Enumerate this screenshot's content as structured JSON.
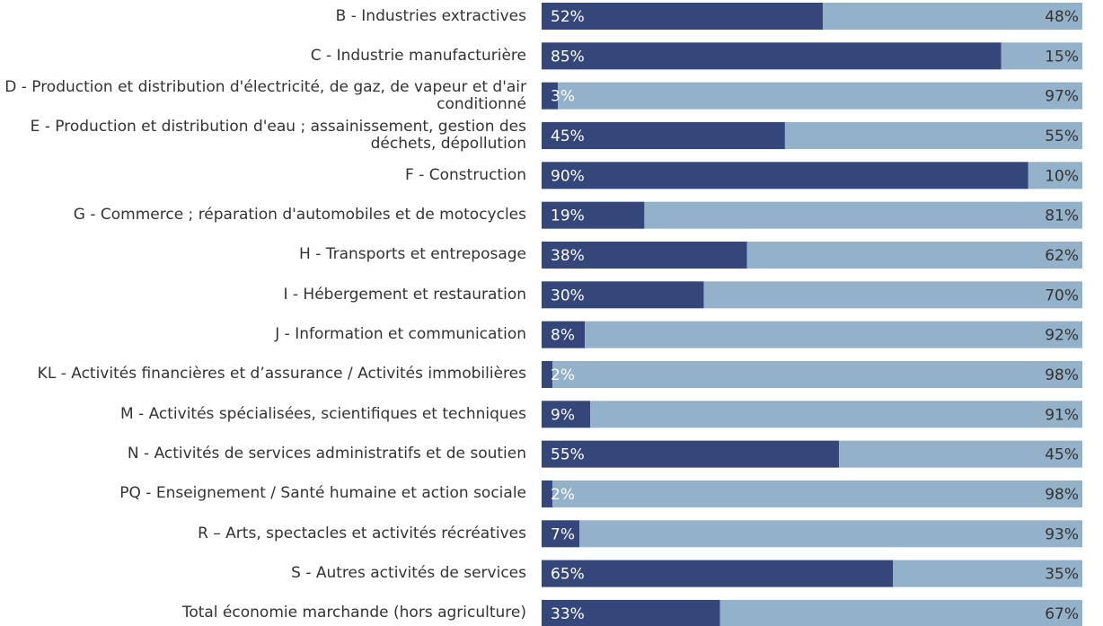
{
  "chart_data": {
    "type": "stacked-bar-horizontal",
    "categories": [
      "B - Industries extractives",
      "C - Industrie manufacturière",
      "D - Production et distribution d'électricité, de gaz, de vapeur et d'air conditionné",
      "E - Production et distribution d'eau ; assainissement, gestion des déchets, dépollution",
      "F - Construction",
      "G - Commerce ; réparation d'automobiles et de motocycles",
      "H - Transports et entreposage",
      "I - Hébergement et restauration",
      "J - Information et communication",
      "KL - Activités financières et d’assurance / Activités immobilières",
      "M - Activités spécialisées, scientifiques et techniques",
      "N - Activités de services administratifs et de soutien",
      "PQ - Enseignement / Santé humaine et action sociale",
      "R – Arts, spectacles et activités récréatives",
      "S - Autres activités de services",
      "Total économie marchande (hors agriculture)"
    ],
    "series": [
      {
        "color": "#34467a",
        "values": [
          52,
          85,
          3,
          45,
          90,
          19,
          38,
          30,
          8,
          2,
          9,
          55,
          2,
          7,
          65,
          33
        ],
        "value_labels": [
          "52%",
          "85%",
          "3%",
          "45%",
          "90%",
          "19%",
          "38%",
          "30%",
          "8%",
          "2%",
          "9%",
          "55%",
          "2%",
          "7%",
          "65%",
          "33%"
        ]
      },
      {
        "color": "#93b1c8",
        "values": [
          48,
          15,
          97,
          55,
          10,
          81,
          62,
          70,
          92,
          98,
          91,
          45,
          98,
          93,
          35,
          67
        ],
        "value_labels": [
          "48%",
          "15%",
          "97%",
          "55%",
          "10%",
          "81%",
          "62%",
          "70%",
          "92%",
          "98%",
          "91%",
          "45%",
          "98%",
          "93%",
          "35%",
          "67%"
        ]
      }
    ],
    "xlim": [
      0,
      100
    ]
  }
}
